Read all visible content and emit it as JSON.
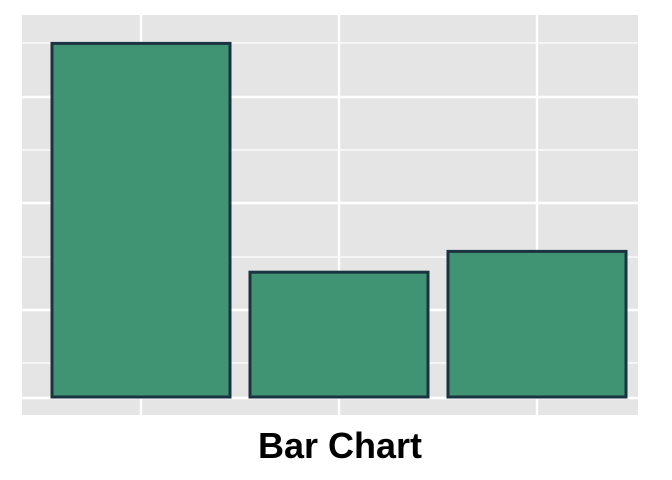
{
  "chart_data": {
    "type": "bar",
    "title": "Bar Chart",
    "categories": [
      "",
      "",
      ""
    ],
    "values": [
      6.8,
      2.4,
      2.8
    ],
    "ylim": [
      0,
      7
    ],
    "xlabel": "",
    "ylabel": "",
    "grid": true,
    "legend": "none",
    "colors": {
      "bar_fill": "#419473",
      "bar_stroke": "#1a3340",
      "panel_background": "#e5e5e5",
      "grid_line": "#ffffff"
    }
  }
}
